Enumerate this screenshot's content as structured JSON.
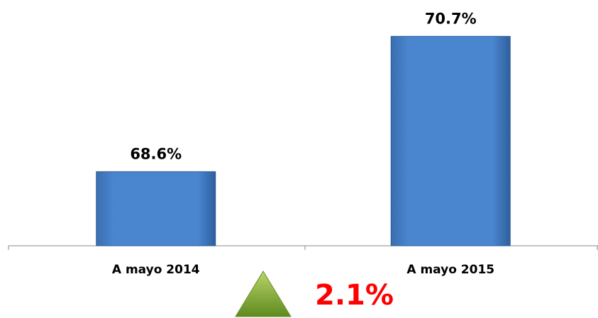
{
  "chart_data": {
    "type": "bar",
    "categories": [
      "A mayo 2014",
      "A mayo 2015"
    ],
    "values": [
      68.6,
      70.7
    ],
    "value_labels": [
      "68.6%",
      "70.7%"
    ],
    "color": "#4a86d0",
    "ylim": [
      67.45,
      71.0
    ],
    "annotation": "2.1%"
  }
}
